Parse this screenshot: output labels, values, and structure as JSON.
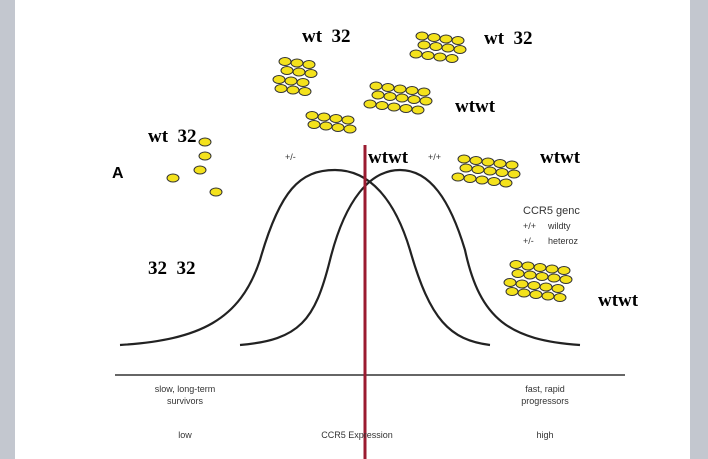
{
  "panel_label": "A",
  "genotype_labels": [
    "wt  32",
    "wt  32",
    "wt  32",
    "wtwt",
    "wtwt",
    "wtwt",
    "wtwt",
    "32  32"
  ],
  "curve_labels": [
    "+/-",
    "+/+"
  ],
  "legend": {
    "title": "CCR5 genc",
    "rows": [
      [
        "+/+",
        "wildty"
      ],
      [
        "+/-",
        "heteroz"
      ]
    ]
  },
  "axis": {
    "left": [
      "slow, long-term",
      "survivors",
      "low"
    ],
    "center": "CCR5 Expression",
    "right": [
      "fast, rapid",
      "progressors",
      "high"
    ]
  }
}
